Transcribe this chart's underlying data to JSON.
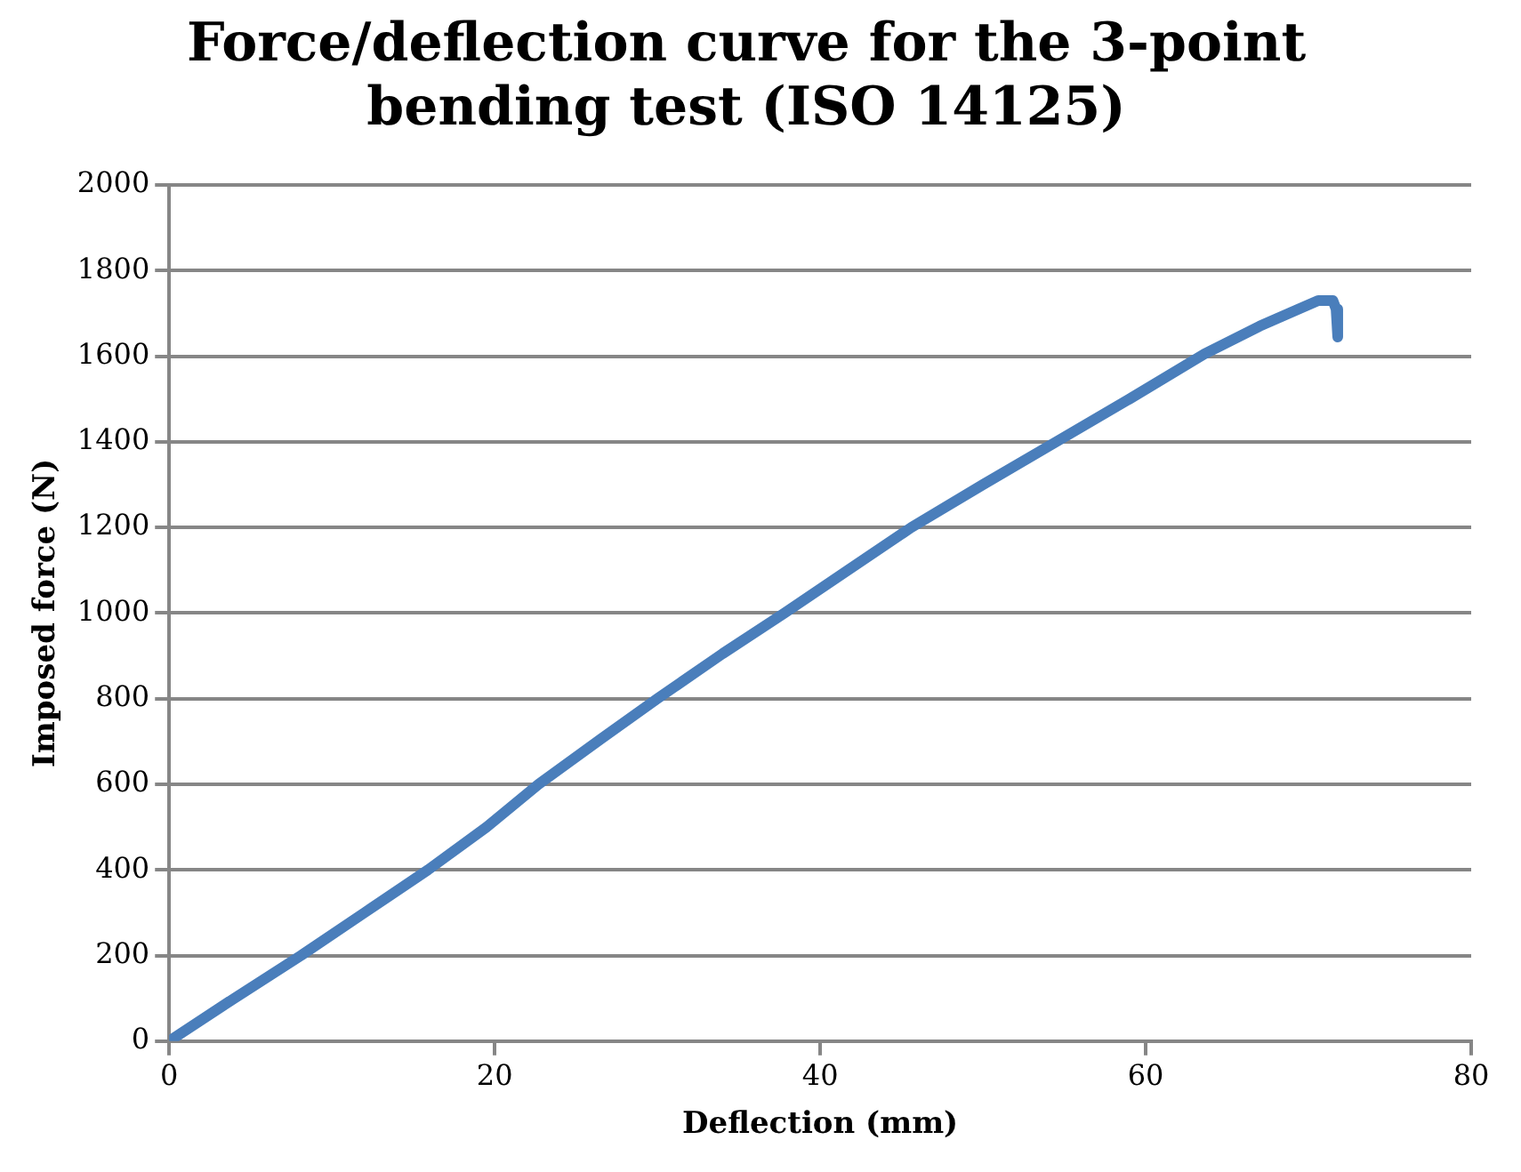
{
  "chart_data": {
    "type": "line",
    "title": "Force/deflection curve for the 3-point bending test (ISO 14125)",
    "xlabel": "Deflection (mm)",
    "ylabel": "Imposed force (N)",
    "series": [
      {
        "color": "#4a7ebb",
        "x": [
          0,
          4,
          8.1,
          12,
          15.9,
          19.5,
          22.7,
          26.5,
          30,
          34,
          37.8,
          41.7,
          45.6,
          50,
          54.5,
          59,
          63.6,
          67,
          69.5,
          70.6,
          71.5,
          71.7,
          71.8
        ],
        "values": [
          0,
          100,
          200,
          300,
          400,
          500,
          600,
          705,
          800,
          905,
          1000,
          1100,
          1200,
          1300,
          1400,
          1500,
          1605,
          1670,
          1712,
          1730,
          1730,
          1710,
          1645
        ]
      }
    ],
    "xlim": [
      0,
      80
    ],
    "xticks": [
      0,
      20,
      40,
      60,
      80
    ],
    "ylim": [
      0,
      2000
    ],
    "yticks": [
      0,
      200,
      400,
      600,
      800,
      1000,
      1200,
      1400,
      1600,
      1800,
      2000
    ],
    "grid": "y",
    "legend": false,
    "marker": "none",
    "line_style": "solid"
  }
}
